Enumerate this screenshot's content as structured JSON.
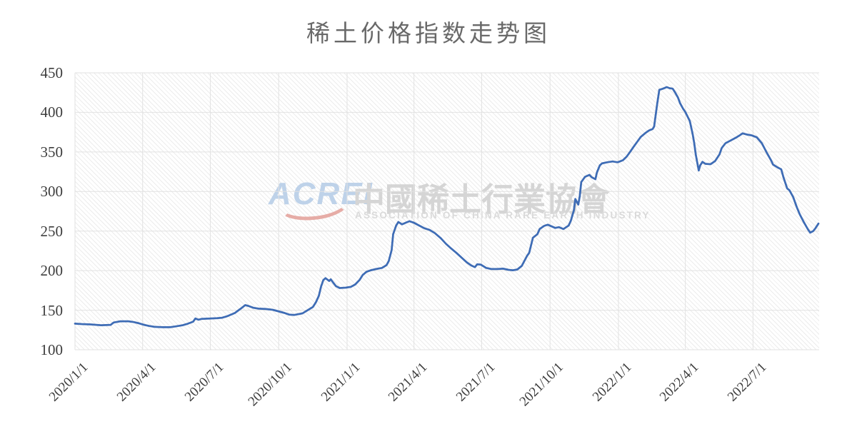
{
  "chart_data": {
    "type": "line",
    "title": "稀土价格指数走势图",
    "title_color": "#696969",
    "xlabel": "",
    "ylabel": "",
    "ylim": [
      100,
      450
    ],
    "y_ticks": [
      100,
      150,
      200,
      250,
      300,
      350,
      400,
      450
    ],
    "x_range": [
      "2020-01-01",
      "2022-09-28"
    ],
    "x_ticks": [
      {
        "date": "2020-01-01",
        "label": "2020/1/1"
      },
      {
        "date": "2020-04-01",
        "label": "2020/4/1"
      },
      {
        "date": "2020-07-01",
        "label": "2020/7/1"
      },
      {
        "date": "2020-10-01",
        "label": "2020/10/1"
      },
      {
        "date": "2021-01-01",
        "label": "2021/1/1"
      },
      {
        "date": "2021-04-01",
        "label": "2021/4/1"
      },
      {
        "date": "2021-07-01",
        "label": "2021/7/1"
      },
      {
        "date": "2021-10-01",
        "label": "2021/10/1"
      },
      {
        "date": "2022-01-01",
        "label": "2022/1/1"
      },
      {
        "date": "2022-04-01",
        "label": "2022/4/1"
      },
      {
        "date": "2022-07-01",
        "label": "2022/7/1"
      }
    ],
    "grid": true,
    "grid_color": "#e2e2e2",
    "line_color": "#3e6cb5",
    "line_width": 2.75,
    "legend": "none",
    "points": [
      [
        "2020-01-01",
        133
      ],
      [
        "2020-01-10",
        132.5
      ],
      [
        "2020-01-22",
        132
      ],
      [
        "2020-02-05",
        131
      ],
      [
        "2020-02-18",
        131.5
      ],
      [
        "2020-02-22",
        134.5
      ],
      [
        "2020-03-02",
        136
      ],
      [
        "2020-03-13",
        136
      ],
      [
        "2020-03-20",
        135
      ],
      [
        "2020-03-27",
        133.5
      ],
      [
        "2020-04-03",
        131.5
      ],
      [
        "2020-04-10",
        130
      ],
      [
        "2020-04-17",
        129
      ],
      [
        "2020-04-28",
        128.5
      ],
      [
        "2020-05-08",
        128.5
      ],
      [
        "2020-05-15",
        129.5
      ],
      [
        "2020-05-25",
        131
      ],
      [
        "2020-06-01",
        133
      ],
      [
        "2020-06-08",
        135.5
      ],
      [
        "2020-06-11",
        139.5
      ],
      [
        "2020-06-15",
        138
      ],
      [
        "2020-06-19",
        139
      ],
      [
        "2020-06-30",
        139.5
      ],
      [
        "2020-07-10",
        140
      ],
      [
        "2020-07-17",
        140.5
      ],
      [
        "2020-07-24",
        142.5
      ],
      [
        "2020-08-03",
        146.5
      ],
      [
        "2020-08-11",
        152
      ],
      [
        "2020-08-17",
        156.5
      ],
      [
        "2020-08-21",
        155.5
      ],
      [
        "2020-08-28",
        153
      ],
      [
        "2020-09-04",
        152
      ],
      [
        "2020-09-14",
        151.5
      ],
      [
        "2020-09-23",
        150.5
      ],
      [
        "2020-10-09",
        146.5
      ],
      [
        "2020-10-15",
        144.5
      ],
      [
        "2020-10-22",
        144
      ],
      [
        "2020-11-02",
        146
      ],
      [
        "2020-11-09",
        150
      ],
      [
        "2020-11-16",
        154
      ],
      [
        "2020-11-20",
        160
      ],
      [
        "2020-11-24",
        168
      ],
      [
        "2020-11-27",
        180
      ],
      [
        "2020-11-30",
        188
      ],
      [
        "2020-12-03",
        190.5
      ],
      [
        "2020-12-08",
        187
      ],
      [
        "2020-12-10",
        189
      ],
      [
        "2020-12-14",
        184
      ],
      [
        "2020-12-17",
        180.5
      ],
      [
        "2020-12-22",
        178
      ],
      [
        "2020-12-30",
        178.5
      ],
      [
        "2021-01-06",
        179.5
      ],
      [
        "2021-01-12",
        182.5
      ],
      [
        "2021-01-18",
        188.5
      ],
      [
        "2021-01-22",
        194.5
      ],
      [
        "2021-01-27",
        198.5
      ],
      [
        "2021-02-02",
        200.5
      ],
      [
        "2021-02-09",
        202
      ],
      [
        "2021-02-17",
        203.5
      ],
      [
        "2021-02-23",
        207
      ],
      [
        "2021-02-26",
        212
      ],
      [
        "2021-03-02",
        226
      ],
      [
        "2021-03-04",
        246
      ],
      [
        "2021-03-08",
        257
      ],
      [
        "2021-03-11",
        261.5
      ],
      [
        "2021-03-16",
        258.5
      ],
      [
        "2021-03-22",
        261
      ],
      [
        "2021-03-26",
        262.5
      ],
      [
        "2021-04-01",
        260.5
      ],
      [
        "2021-04-08",
        257
      ],
      [
        "2021-04-15",
        253.5
      ],
      [
        "2021-04-22",
        251.5
      ],
      [
        "2021-04-29",
        247.5
      ],
      [
        "2021-05-07",
        241
      ],
      [
        "2021-05-14",
        234
      ],
      [
        "2021-05-21",
        228
      ],
      [
        "2021-05-28",
        222.5
      ],
      [
        "2021-06-04",
        216.5
      ],
      [
        "2021-06-11",
        210.5
      ],
      [
        "2021-06-17",
        206.5
      ],
      [
        "2021-06-22",
        204.5
      ],
      [
        "2021-06-25",
        208
      ],
      [
        "2021-06-30",
        207.5
      ],
      [
        "2021-07-07",
        203.5
      ],
      [
        "2021-07-14",
        202
      ],
      [
        "2021-07-22",
        202
      ],
      [
        "2021-07-30",
        202.5
      ],
      [
        "2021-08-06",
        201
      ],
      [
        "2021-08-12",
        200.5
      ],
      [
        "2021-08-18",
        201.5
      ],
      [
        "2021-08-24",
        206
      ],
      [
        "2021-08-31",
        218.5
      ],
      [
        "2021-09-03",
        222.5
      ],
      [
        "2021-09-08",
        241.5
      ],
      [
        "2021-09-14",
        246
      ],
      [
        "2021-09-17",
        252.5
      ],
      [
        "2021-09-23",
        256.5
      ],
      [
        "2021-09-28",
        258
      ],
      [
        "2021-10-08",
        254
      ],
      [
        "2021-10-13",
        255
      ],
      [
        "2021-10-19",
        252.5
      ],
      [
        "2021-10-26",
        257
      ],
      [
        "2021-10-29",
        263
      ],
      [
        "2021-11-02",
        276
      ],
      [
        "2021-11-04",
        290.5
      ],
      [
        "2021-11-08",
        283.5
      ],
      [
        "2021-11-10",
        294
      ],
      [
        "2021-11-12",
        312
      ],
      [
        "2021-11-17",
        318.5
      ],
      [
        "2021-11-23",
        321
      ],
      [
        "2021-11-26",
        318
      ],
      [
        "2021-12-01",
        315.5
      ],
      [
        "2021-12-03",
        324
      ],
      [
        "2021-12-07",
        333
      ],
      [
        "2021-12-10",
        335.5
      ],
      [
        "2021-12-17",
        337
      ],
      [
        "2021-12-24",
        338
      ],
      [
        "2021-12-31",
        337
      ],
      [
        "2022-01-07",
        339.5
      ],
      [
        "2022-01-12",
        344
      ],
      [
        "2022-01-17",
        350.5
      ],
      [
        "2022-01-21",
        356
      ],
      [
        "2022-01-26",
        362.5
      ],
      [
        "2022-01-31",
        369
      ],
      [
        "2022-02-07",
        374.5
      ],
      [
        "2022-02-11",
        377
      ],
      [
        "2022-02-16",
        379
      ],
      [
        "2022-02-18",
        382
      ],
      [
        "2022-02-22",
        410
      ],
      [
        "2022-02-25",
        428.5
      ],
      [
        "2022-03-02",
        430
      ],
      [
        "2022-03-07",
        432
      ],
      [
        "2022-03-11",
        430.5
      ],
      [
        "2022-03-15",
        430
      ],
      [
        "2022-03-18",
        425.5
      ],
      [
        "2022-03-22",
        419
      ],
      [
        "2022-03-25",
        411.5
      ],
      [
        "2022-03-29",
        404.5
      ],
      [
        "2022-04-01",
        400.5
      ],
      [
        "2022-04-07",
        389
      ],
      [
        "2022-04-11",
        372
      ],
      [
        "2022-04-13",
        361
      ],
      [
        "2022-04-15",
        347
      ],
      [
        "2022-04-19",
        326.5
      ],
      [
        "2022-04-21",
        333
      ],
      [
        "2022-04-24",
        337.5
      ],
      [
        "2022-04-28",
        335
      ],
      [
        "2022-05-05",
        334.5
      ],
      [
        "2022-05-11",
        338.5
      ],
      [
        "2022-05-17",
        347
      ],
      [
        "2022-05-20",
        355
      ],
      [
        "2022-05-25",
        361
      ],
      [
        "2022-06-01",
        364.5
      ],
      [
        "2022-06-08",
        368
      ],
      [
        "2022-06-14",
        371.5
      ],
      [
        "2022-06-17",
        373.5
      ],
      [
        "2022-06-23",
        372
      ],
      [
        "2022-06-29",
        371
      ],
      [
        "2022-07-06",
        368.5
      ],
      [
        "2022-07-13",
        361
      ],
      [
        "2022-07-19",
        350
      ],
      [
        "2022-07-25",
        340
      ],
      [
        "2022-07-28",
        334
      ],
      [
        "2022-08-03",
        330.5
      ],
      [
        "2022-08-08",
        328
      ],
      [
        "2022-08-11",
        318
      ],
      [
        "2022-08-16",
        304
      ],
      [
        "2022-08-19",
        301.5
      ],
      [
        "2022-08-24",
        293
      ],
      [
        "2022-08-29",
        280
      ],
      [
        "2022-09-02",
        271
      ],
      [
        "2022-09-07",
        262
      ],
      [
        "2022-09-13",
        252
      ],
      [
        "2022-09-16",
        248
      ],
      [
        "2022-09-20",
        250
      ],
      [
        "2022-09-23",
        253.5
      ],
      [
        "2022-09-27",
        259.5
      ]
    ],
    "plot_background": "diagonal-hatch",
    "hatch_color": "#ececec"
  },
  "watermark": {
    "logo_text": "ACREI",
    "logo_color": "#bed2e9",
    "swoosh_color": "#e6aca6",
    "cn_text": "中國稀土行業協會",
    "cn_color": "#d5d5d5",
    "en_text": "ASSOCIATION OF CHINA RARE EARTH INDUSTRY",
    "en_color": "#dadada"
  }
}
